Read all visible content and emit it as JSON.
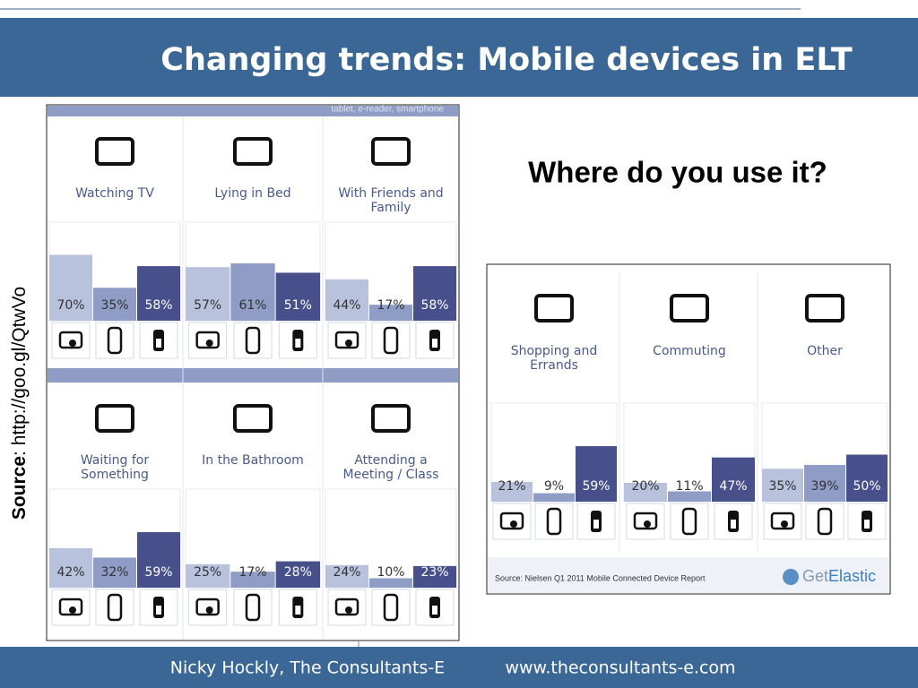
{
  "slide_title": "Changing trends: Mobile devices in ELT",
  "question": "Where do you use it?",
  "source_label": "Source",
  "source_url": ": http://goo.gl/QtwVo",
  "infographic_header": "tablet, e-reader, smartphone",
  "infographic_source": "Source: Nielsen Q1 2011 Mobile Connected Device Report",
  "logo_get": "Get",
  "logo_elastic": "Elastic",
  "footer": {
    "author": "Nicky Hockly, The Consultants-E",
    "url": "www.theconsultants-e.com"
  },
  "chart_data": [
    {
      "type": "bar",
      "title": "Watching TV",
      "categories": [
        null,
        null,
        null
      ],
      "values": [
        70,
        35,
        58
      ],
      "value_labels": [
        "70%",
        "35%",
        "58%"
      ],
      "colors": [
        "#b8c2dd",
        "#8f9cc5",
        "#47508b"
      ]
    },
    {
      "type": "bar",
      "title": "Lying in Bed",
      "categories": [
        null,
        null,
        null
      ],
      "values": [
        57,
        61,
        51
      ],
      "value_labels": [
        "57%",
        "61%",
        "51%"
      ],
      "colors": [
        "#b8c2dd",
        "#8f9cc5",
        "#47508b"
      ]
    },
    {
      "type": "bar",
      "title": "With Friends and Family",
      "categories": [
        null,
        null,
        null
      ],
      "values": [
        44,
        17,
        58
      ],
      "value_labels": [
        "44%",
        "17%",
        "58%"
      ],
      "colors": [
        "#b8c2dd",
        "#8f9cc5",
        "#47508b"
      ]
    },
    {
      "type": "bar",
      "title": "Waiting for Something",
      "categories": [
        null,
        null,
        null
      ],
      "values": [
        42,
        32,
        59
      ],
      "value_labels": [
        "42%",
        "32%",
        "59%"
      ],
      "colors": [
        "#b8c2dd",
        "#8f9cc5",
        "#47508b"
      ]
    },
    {
      "type": "bar",
      "title": "In the Bathroom",
      "categories": [
        null,
        null,
        null
      ],
      "values": [
        25,
        17,
        28
      ],
      "value_labels": [
        "25%",
        "17%",
        "28%"
      ],
      "colors": [
        "#b8c2dd",
        "#8f9cc5",
        "#47508b"
      ]
    },
    {
      "type": "bar",
      "title": "Attending a Meeting / Class",
      "categories": [
        null,
        null,
        null
      ],
      "values": [
        24,
        10,
        23
      ],
      "value_labels": [
        "24%",
        "10%",
        "23%"
      ],
      "colors": [
        "#b8c2dd",
        "#8f9cc5",
        "#47508b"
      ]
    },
    {
      "type": "bar",
      "title": "Shopping and Errands",
      "categories": [
        null,
        null,
        null
      ],
      "values": [
        21,
        9,
        59
      ],
      "value_labels": [
        "21%",
        "9%",
        "59%"
      ],
      "colors": [
        "#b8c2dd",
        "#8f9cc5",
        "#47508b"
      ]
    },
    {
      "type": "bar",
      "title": "Commuting",
      "categories": [
        null,
        null,
        null
      ],
      "values": [
        20,
        11,
        47
      ],
      "value_labels": [
        "20%",
        "11%",
        "47%"
      ],
      "colors": [
        "#b8c2dd",
        "#8f9cc5",
        "#47508b"
      ]
    },
    {
      "type": "bar",
      "title": "Other",
      "categories": [
        null,
        null,
        null
      ],
      "values": [
        35,
        39,
        50
      ],
      "value_labels": [
        "35%",
        "39%",
        "50%"
      ],
      "colors": [
        "#b8c2dd",
        "#8f9cc5",
        "#47508b"
      ]
    }
  ]
}
